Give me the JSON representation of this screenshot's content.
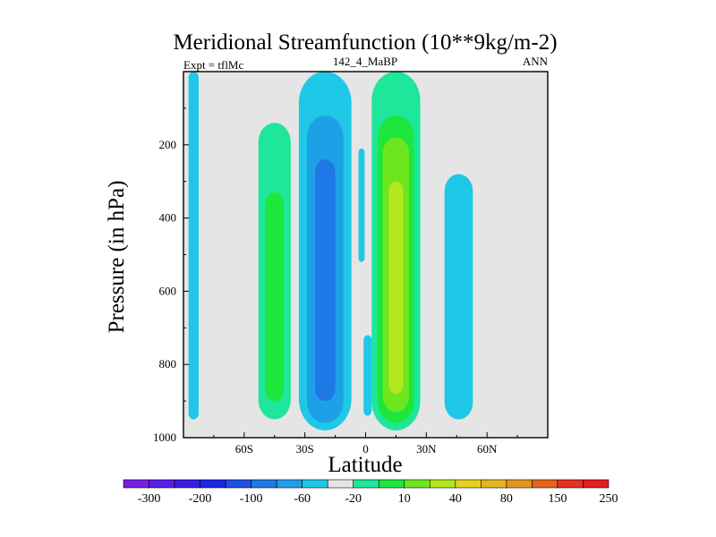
{
  "chart_data": {
    "type": "contour",
    "title": "Meridional Streamfunction (10**9kg/m-2)",
    "subtitle_left": "Expt = tflMc",
    "subtitle_center": "142_4_MaBP",
    "subtitle_right": "ANN",
    "xlabel": "Latitude",
    "ylabel": "Pressure (in hPa)",
    "xlim": [
      -90,
      90
    ],
    "ylim": [
      1000,
      0
    ],
    "x_ticks": [
      {
        "value": -60,
        "label": "60S"
      },
      {
        "value": -30,
        "label": "30S"
      },
      {
        "value": 0,
        "label": "0"
      },
      {
        "value": 30,
        "label": "30N"
      },
      {
        "value": 60,
        "label": "60N"
      }
    ],
    "y_ticks": [
      {
        "value": 200,
        "label": "200"
      },
      {
        "value": 400,
        "label": "400"
      },
      {
        "value": 600,
        "label": "600"
      },
      {
        "value": 800,
        "label": "800"
      },
      {
        "value": 1000,
        "label": "1000"
      }
    ],
    "background_level": "-10 to 10",
    "background_color": "#e5e5e5",
    "colorbar": {
      "colors": [
        "#7a1ee6",
        "#5a1ee6",
        "#3a1ee6",
        "#1e28e6",
        "#1e50e6",
        "#1e78e6",
        "#1ea0e6",
        "#1ec8e6",
        "#e5e5e5",
        "#1ee69b",
        "#1ee63c",
        "#6ee61e",
        "#b4e61e",
        "#e6d21e",
        "#e6b41e",
        "#e6961e",
        "#e6641e",
        "#e6321e",
        "#e61e1e"
      ],
      "labels": [
        {
          "index": 1,
          "text": "-300"
        },
        {
          "index": 3,
          "text": "-200"
        },
        {
          "index": 5,
          "text": "-100"
        },
        {
          "index": 7,
          "text": "-60"
        },
        {
          "index": 9,
          "text": "-20"
        },
        {
          "index": 11,
          "text": "10"
        },
        {
          "index": 13,
          "text": "40"
        },
        {
          "index": 15,
          "text": "80"
        },
        {
          "index": 17,
          "text": "150"
        },
        {
          "index": 19,
          "text": "250"
        }
      ]
    },
    "cells": [
      {
        "name": "tropical-south-cell",
        "lat": -20,
        "p_top": 0,
        "p_bottom": 980,
        "levels": [
          {
            "color": "#1ec8e6",
            "hw": 13,
            "p_top": 0,
            "p_bottom": 980
          },
          {
            "color": "#1ea0e6",
            "hw": 9,
            "p_top": 120,
            "p_bottom": 960
          },
          {
            "color": "#1e78e6",
            "hw": 5,
            "p_top": 240,
            "p_bottom": 900
          }
        ]
      },
      {
        "name": "tropical-north-cell",
        "lat": 15,
        "p_top": 0,
        "p_bottom": 980,
        "levels": [
          {
            "color": "#1ee69b",
            "hw": 12,
            "p_top": 0,
            "p_bottom": 980
          },
          {
            "color": "#1ee63c",
            "hw": 9,
            "p_top": 120,
            "p_bottom": 960
          },
          {
            "color": "#6ee61e",
            "hw": 6.5,
            "p_top": 180,
            "p_bottom": 930
          },
          {
            "color": "#b4e61e",
            "hw": 3.5,
            "p_top": 300,
            "p_bottom": 880
          }
        ]
      },
      {
        "name": "ferrel-south-cell",
        "lat": -45,
        "p_top": 140,
        "p_bottom": 950,
        "levels": [
          {
            "color": "#1ee69b",
            "hw": 8,
            "p_top": 140,
            "p_bottom": 950
          },
          {
            "color": "#1ee63c",
            "hw": 4.5,
            "p_top": 330,
            "p_bottom": 900
          }
        ]
      },
      {
        "name": "ferrel-north-cell",
        "lat": 46,
        "p_top": 280,
        "p_bottom": 950,
        "levels": [
          {
            "color": "#1ec8e6",
            "hw": 7,
            "p_top": 280,
            "p_bottom": 950
          }
        ]
      },
      {
        "name": "polar-south-cell",
        "lat": -85,
        "p_top": 0,
        "p_bottom": 950,
        "levels": [
          {
            "color": "#1ec8e6",
            "hw": 2.5,
            "p_top": 0,
            "p_bottom": 950
          }
        ]
      },
      {
        "name": "equatorial-upper-sliver",
        "lat": -2,
        "p_top": 210,
        "p_bottom": 520,
        "levels": [
          {
            "color": "#1ec8e6",
            "hw": 1.5,
            "p_top": 210,
            "p_bottom": 520
          }
        ]
      },
      {
        "name": "equatorial-lower-sliver",
        "lat": 1,
        "p_top": 720,
        "p_bottom": 940,
        "levels": [
          {
            "color": "#1ec8e6",
            "hw": 2,
            "p_top": 720,
            "p_bottom": 940
          }
        ]
      }
    ]
  }
}
